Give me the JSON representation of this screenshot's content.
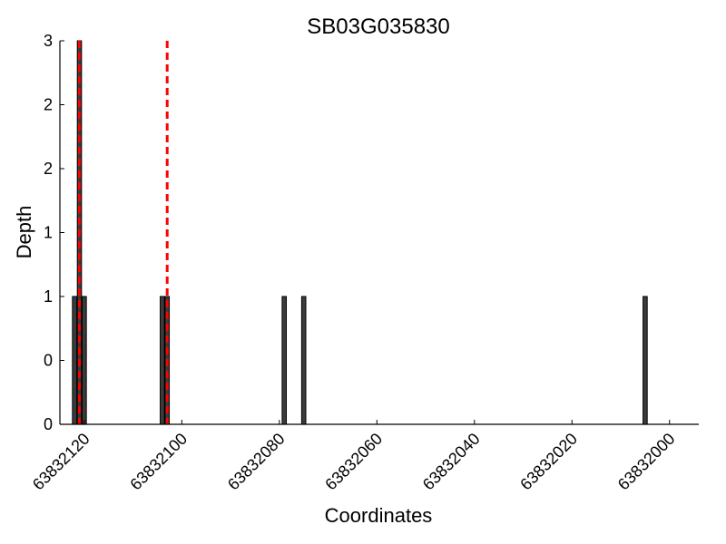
{
  "chart_data": {
    "type": "bar",
    "title": "SB03G035830",
    "xlabel": "Coordinates",
    "ylabel": "Depth",
    "x_reversed": true,
    "xlim": [
      63832125,
      63831994
    ],
    "ylim": [
      0,
      3
    ],
    "grid": false,
    "legend": "none",
    "x_ticks": [
      {
        "value": 63832120,
        "label": "63832120"
      },
      {
        "value": 63832100,
        "label": "63832100"
      },
      {
        "value": 63832080,
        "label": "63832080"
      },
      {
        "value": 63832060,
        "label": "63832060"
      },
      {
        "value": 63832040,
        "label": "63832040"
      },
      {
        "value": 63832020,
        "label": "63832020"
      },
      {
        "value": 63832000,
        "label": "63832000"
      }
    ],
    "y_ticks": [
      {
        "value": 0,
        "label": "0"
      },
      {
        "value": 0.5,
        "label": "0"
      },
      {
        "value": 1,
        "label": "1"
      },
      {
        "value": 1.5,
        "label": "1"
      },
      {
        "value": 2,
        "label": "2"
      },
      {
        "value": 2.5,
        "label": "2"
      },
      {
        "value": 3,
        "label": "3"
      }
    ],
    "series": [
      {
        "points": [
          {
            "x": 63832122,
            "y": 1
          },
          {
            "x": 63832121,
            "y": 3
          },
          {
            "x": 63832120,
            "y": 1
          },
          {
            "x": 63832104,
            "y": 1
          },
          {
            "x": 63832103,
            "y": 1
          },
          {
            "x": 63832079,
            "y": 1
          },
          {
            "x": 63832075,
            "y": 1
          },
          {
            "x": 63832005,
            "y": 1
          }
        ]
      }
    ],
    "vlines": [
      {
        "x": 63832121
      },
      {
        "x": 63832103
      }
    ],
    "colors": {
      "bar_fill": "#3c3c3c",
      "bar_stroke": "#000000",
      "vline": "#ff0000",
      "axis": "#000000"
    }
  }
}
